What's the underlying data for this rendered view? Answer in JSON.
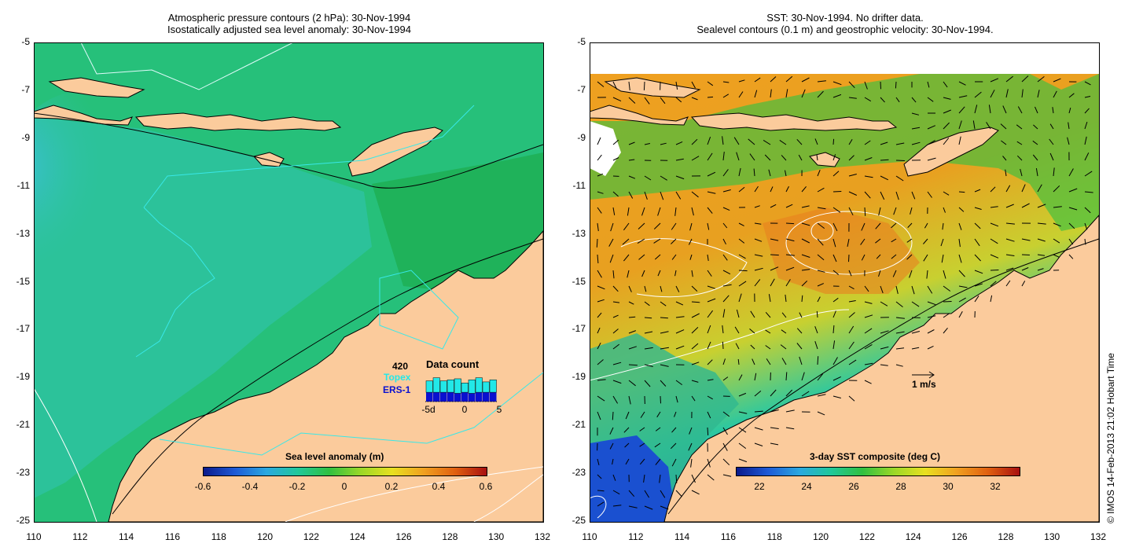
{
  "left_panel": {
    "title_line1": "Atmospheric pressure contours (2 hPa): 30-Nov-1994",
    "title_line2": "Isostatically adjusted sea level anomaly: 30-Nov-1994",
    "colorbar": {
      "title": "Sea level anomaly (m)",
      "labels": [
        "-0.6",
        "-0.4",
        "-0.2",
        "0",
        "0.2",
        "0.4",
        "0.6"
      ],
      "values": [
        -0.6,
        -0.4,
        -0.2,
        0,
        0.2,
        0.4,
        0.6
      ],
      "colors": [
        "#0a1a8c",
        "#1e5ad6",
        "#2aa8e0",
        "#20c89a",
        "#30c040",
        "#9ad828",
        "#e8e020",
        "#f0a020",
        "#e06010",
        "#a81010"
      ]
    },
    "data_count": {
      "number": "420",
      "title": "Data count",
      "topex_label": "Topex",
      "ers_label": "ERS-1",
      "axis_labels": [
        "-5d",
        "0",
        "5"
      ],
      "topex_values": [
        0.55,
        0.7,
        0.55,
        0.6,
        0.7,
        0.45,
        0.65,
        0.7,
        0.5,
        0.6
      ],
      "ers_values": [
        0.45,
        0.45,
        0.45,
        0.45,
        0.4,
        0.45,
        0.4,
        0.45,
        0.45,
        0.45
      ],
      "topex_color": "#22e8e8",
      "ers_color": "#0a10d0"
    }
  },
  "right_panel": {
    "title_line1": "SST: 30-Nov-1994. No drifter data.",
    "title_line2": "Sealevel contours (0.1 m) and geostrophic velocity: 30-Nov-1994.",
    "colorbar": {
      "title": "3-day SST composite (deg C)",
      "labels": [
        "22",
        "24",
        "26",
        "28",
        "30",
        "32"
      ],
      "values": [
        22,
        24,
        26,
        28,
        30,
        32
      ],
      "range": [
        21,
        33
      ],
      "colors": [
        "#0a1a8c",
        "#1e5ad6",
        "#2aa8e0",
        "#20c89a",
        "#30c040",
        "#9ad828",
        "#e8e020",
        "#f0a020",
        "#e06010",
        "#a81010"
      ]
    },
    "velocity_scale_label": "1 m/s"
  },
  "axes": {
    "x_ticks": [
      "110",
      "112",
      "114",
      "116",
      "118",
      "120",
      "122",
      "124",
      "126",
      "128",
      "130",
      "132"
    ],
    "y_ticks": [
      "-5",
      "-7",
      "-9",
      "-11",
      "-13",
      "-15",
      "-17",
      "-19",
      "-21",
      "-23",
      "-25"
    ],
    "lon_range": [
      110,
      132
    ],
    "lat_range": [
      -25,
      -5
    ]
  },
  "colors": {
    "land": "#fbcb9c",
    "coast": "#000000",
    "ocean_sla": "#22b86a",
    "sst_warm": "#f0a020"
  },
  "credit": "© IMOS 14-Feb-2013 21:02 Hobart Time"
}
